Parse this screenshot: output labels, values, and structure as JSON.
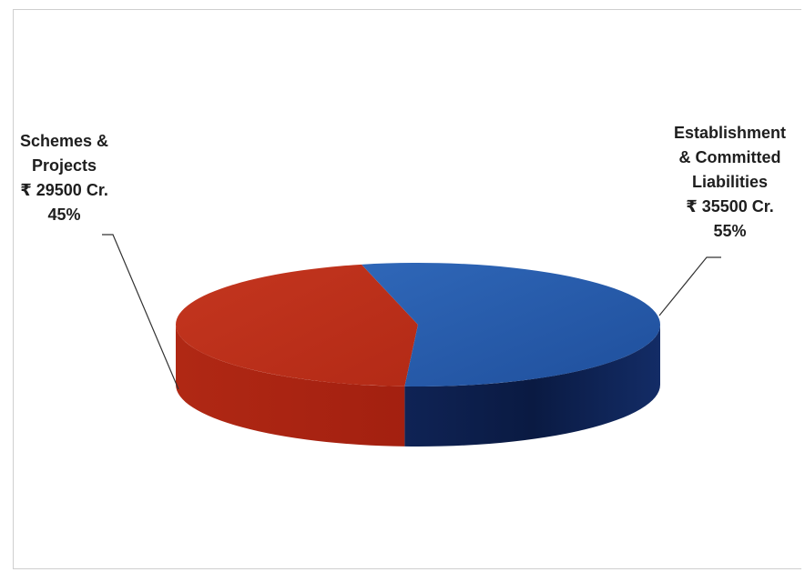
{
  "chart_data": {
    "type": "pie",
    "style": "3d",
    "title": "",
    "categories": [
      "Schemes & Projects",
      "Establishment & Committed Liabilities"
    ],
    "values": [
      29500,
      35500
    ],
    "percentages": [
      45,
      55
    ],
    "unit": "Cr.",
    "colors": {
      "Schemes & Projects": "#c0331f",
      "Establishment & Committed Liabilities": "#2a5dae"
    },
    "labels": [
      {
        "line1": "Schemes &",
        "line2": "Projects",
        "amount": "₹ 29500 Cr.",
        "percent": "45%"
      },
      {
        "line1": "Establishment",
        "line2": "& Committed",
        "line3": "Liabilities",
        "amount": "₹ 35500 Cr.",
        "percent": "55%"
      }
    ]
  }
}
